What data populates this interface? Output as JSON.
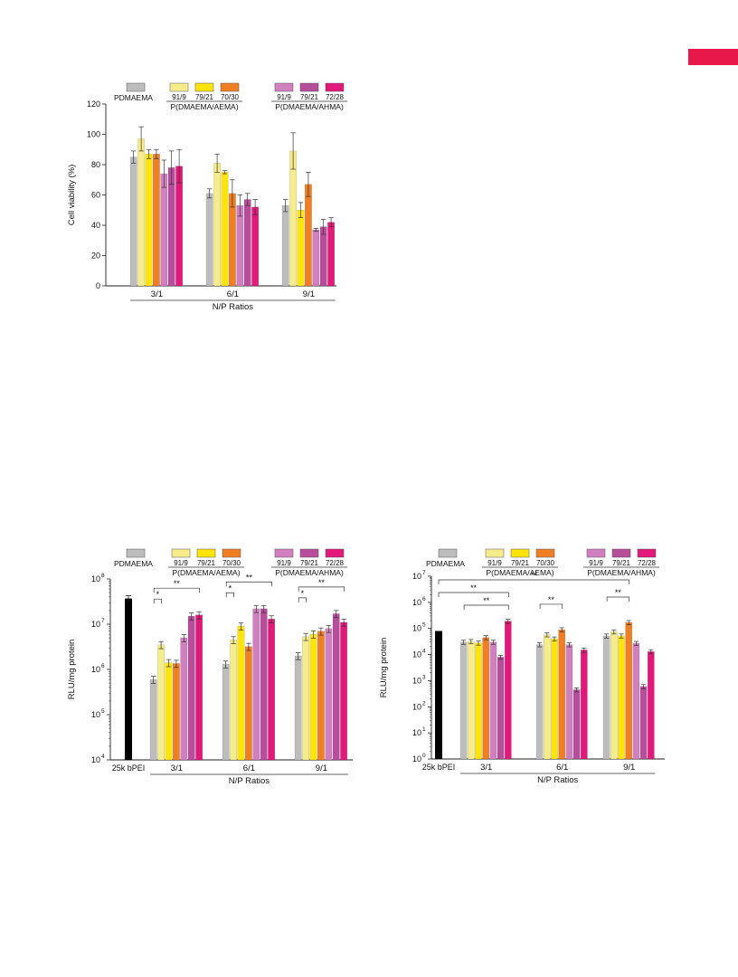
{
  "colors": {
    "accent_tag": "#e8194a",
    "PDMAEMA": "#bdbdbd",
    "AEMA_91_9": "#f6ec8b",
    "AEMA_79_21": "#ffe40a",
    "AEMA_70_30": "#f07f24",
    "AHMA_91_9": "#d27fbf",
    "AHMA_79_21": "#b84d9c",
    "AHMA_72_28": "#e2187a",
    "bPEI": "#000000"
  },
  "chart_data": [
    {
      "id": "viability",
      "type": "bar",
      "ylabel": "Cell viability (%)",
      "xlabel": "N/P Ratios",
      "ylim": [
        0,
        120
      ],
      "yticks": [
        "0",
        "20",
        "40",
        "60",
        "80",
        "100",
        "120"
      ],
      "categories": [
        "3/1",
        "6/1",
        "9/1"
      ],
      "legend": {
        "single": "PDMAEMA",
        "group1": "P(DMAEMA/AEMA)",
        "group1_items": [
          "91/9",
          "79/21",
          "70/30"
        ],
        "group2": "P(DMAEMA/AHMA)",
        "group2_items": [
          "91/9",
          "79/21",
          "72/28"
        ]
      },
      "series": [
        {
          "name": "PDMAEMA",
          "values": [
            85,
            61,
            53
          ],
          "errors": [
            4,
            3,
            4
          ]
        },
        {
          "name": "91/9",
          "values": [
            97,
            81,
            89
          ],
          "errors": [
            8,
            6,
            12
          ]
        },
        {
          "name": "79/21",
          "values": [
            87,
            75,
            50
          ],
          "errors": [
            3,
            1,
            5
          ]
        },
        {
          "name": "70/30",
          "values": [
            87,
            61,
            67
          ],
          "errors": [
            3,
            9,
            8
          ]
        },
        {
          "name": "91/9",
          "values": [
            74,
            53,
            37
          ],
          "errors": [
            9,
            7,
            1
          ]
        },
        {
          "name": "79/21",
          "values": [
            78,
            57,
            39
          ],
          "errors": [
            11,
            4,
            5
          ]
        },
        {
          "name": "72/28",
          "values": [
            79,
            52,
            42
          ],
          "errors": [
            11,
            5,
            3
          ]
        }
      ]
    },
    {
      "id": "rlu_left",
      "type": "bar",
      "yscale": "log",
      "ylabel": "RLU/mg protein",
      "xlabel": "N/P Ratios",
      "ylim": [
        10000,
        100000000
      ],
      "yticks": [
        "10",
        "10",
        "10",
        "10",
        "10"
      ],
      "ytick_exponents": [
        "4",
        "5",
        "6",
        "7",
        "8"
      ],
      "reference": {
        "label": "25k bPEI",
        "value": 37000000,
        "error": 6000000
      },
      "categories": [
        "3/1",
        "6/1",
        "9/1"
      ],
      "legend": {
        "single": "PDMAEMA",
        "group1": "P(DMAEMA/AEMA)",
        "group1_items": [
          "91/9",
          "79/21",
          "70/30"
        ],
        "group2": "P(DMAEMA/AHMA)",
        "group2_items": [
          "91/9",
          "79/21",
          "72/28"
        ]
      },
      "series": [
        {
          "name": "PDMAEMA",
          "values": [
            600000,
            1300000,
            2000000
          ]
        },
        {
          "name": "91/9",
          "values": [
            3500000,
            4500000,
            5300000
          ]
        },
        {
          "name": "79/21",
          "values": [
            1400000,
            9000000,
            6000000
          ]
        },
        {
          "name": "70/30",
          "values": [
            1350000,
            3200000,
            7000000
          ]
        },
        {
          "name": "91/9",
          "values": [
            5000000,
            22000000,
            8000000
          ]
        },
        {
          "name": "79/21",
          "values": [
            15000000,
            22000000,
            17000000
          ]
        },
        {
          "name": "72/28",
          "values": [
            16000000,
            13000000,
            11000000
          ]
        }
      ],
      "significance": [
        {
          "category": 0,
          "from": 0,
          "to": 1,
          "label": "*"
        },
        {
          "category": 0,
          "from": 0,
          "to": 6,
          "label": "**"
        },
        {
          "category": 1,
          "from": 0,
          "to": 1,
          "label": "*"
        },
        {
          "category": 1,
          "from": 0,
          "to": 6,
          "label": "**"
        },
        {
          "category": 2,
          "from": 0,
          "to": 1,
          "label": "*"
        },
        {
          "category": 2,
          "from": 0,
          "to": 6,
          "label": "**"
        }
      ]
    },
    {
      "id": "rlu_right",
      "type": "bar",
      "yscale": "log",
      "ylabel": "RLU/mg protein",
      "xlabel": "N/P Ratios",
      "ylim": [
        1,
        10000000
      ],
      "yticks": [
        "10",
        "10",
        "10",
        "10",
        "10",
        "10",
        "10",
        "10"
      ],
      "ytick_exponents": [
        "0",
        "1",
        "2",
        "3",
        "4",
        "5",
        "6",
        "7"
      ],
      "reference": {
        "label": "25k bPEI",
        "value": 80000,
        "error": 0
      },
      "categories": [
        "3/1",
        "6/1",
        "9/1"
      ],
      "legend": {
        "single": "PDMAEMA",
        "group1": "P(DMAEMA/AEMA)",
        "group1_items": [
          "91/9",
          "79/21",
          "70/30"
        ],
        "group2": "P(DMAEMA/AHMA)",
        "group2_items": [
          "91/9",
          "79/21",
          "72/28"
        ]
      },
      "series": [
        {
          "name": "PDMAEMA",
          "values": [
            30000,
            24000,
            52000
          ]
        },
        {
          "name": "91/9",
          "values": [
            32000,
            58000,
            75000
          ]
        },
        {
          "name": "79/21",
          "values": [
            28000,
            40000,
            52000
          ]
        },
        {
          "name": "70/30",
          "values": [
            45000,
            90000,
            170000
          ]
        },
        {
          "name": "91/9",
          "values": [
            30000,
            24000,
            27000
          ]
        },
        {
          "name": "79/21",
          "values": [
            8000,
            450,
            600
          ]
        },
        {
          "name": "72/28",
          "values": [
            190000,
            15000,
            13000
          ]
        }
      ],
      "significance": [
        {
          "category": 0,
          "from": 0,
          "to": 6,
          "label": "**"
        },
        {
          "category": 1,
          "from": 0,
          "to": 3,
          "label": "**"
        },
        {
          "category": 2,
          "from": 0,
          "to": 3,
          "label": "**"
        },
        {
          "category": -1,
          "from": 0,
          "to": 3,
          "label": "**"
        },
        {
          "category": -2,
          "from": 0,
          "to": 3,
          "label": "**"
        }
      ]
    }
  ]
}
